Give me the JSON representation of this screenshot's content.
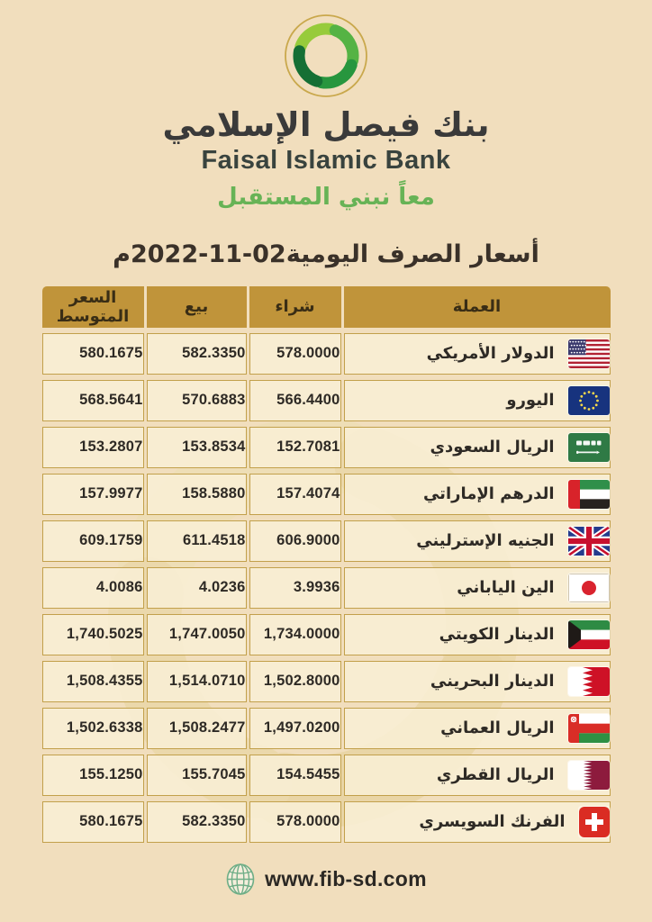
{
  "brand": {
    "logo_icon": "faisal-swirl-logo",
    "bank_name_ar": "بنك فيصل الإسلامي",
    "bank_name_en": "Faisal Islamic Bank",
    "tagline_ar": "معاً نبني المستقبل"
  },
  "title": "أسعار الصرف اليومية02-11-2022م",
  "table": {
    "columns": [
      {
        "key": "currency",
        "label": "العملة"
      },
      {
        "key": "buy",
        "label": "شراء"
      },
      {
        "key": "sell",
        "label": "بيع"
      },
      {
        "key": "avg",
        "label": "السعر المتوسط"
      }
    ],
    "rows": [
      {
        "currency": "الدولار الأمريكي",
        "flag": "us",
        "buy": "578.0000",
        "sell": "582.3350",
        "avg": "580.1675"
      },
      {
        "currency": "اليورو",
        "flag": "eu",
        "buy": "566.4400",
        "sell": "570.6883",
        "avg": "568.5641"
      },
      {
        "currency": "الريال السعودي",
        "flag": "sa",
        "buy": "152.7081",
        "sell": "153.8534",
        "avg": "153.2807"
      },
      {
        "currency": "الدرهم الإماراتي",
        "flag": "ae",
        "buy": "157.4074",
        "sell": "158.5880",
        "avg": "157.9977"
      },
      {
        "currency": "الجنيه الإسترليني",
        "flag": "gb",
        "buy": "606.9000",
        "sell": "611.4518",
        "avg": "609.1759"
      },
      {
        "currency": "الين الياباني",
        "flag": "jp",
        "buy": "3.9936",
        "sell": "4.0236",
        "avg": "4.0086"
      },
      {
        "currency": "الدينار الكويتي",
        "flag": "kw",
        "buy": "1,734.0000",
        "sell": "1,747.0050",
        "avg": "1,740.5025"
      },
      {
        "currency": "الدينار البحريني",
        "flag": "bh",
        "buy": "1,502.8000",
        "sell": "1,514.0710",
        "avg": "1,508.4355"
      },
      {
        "currency": "الريال العماني",
        "flag": "om",
        "buy": "1,497.0200",
        "sell": "1,508.2477",
        "avg": "1,502.6338"
      },
      {
        "currency": "الريال القطري",
        "flag": "qa",
        "buy": "154.5455",
        "sell": "155.7045",
        "avg": "155.1250"
      },
      {
        "currency": "الفرنك السويسري",
        "flag": "ch",
        "buy": "578.0000",
        "sell": "582.3350",
        "avg": "580.1675"
      }
    ]
  },
  "footer": {
    "globe_icon": "globe-icon",
    "website": "www.fib-sd.com"
  },
  "colors": {
    "page_background": "#F1DEBD",
    "header_gold": "#C0943A",
    "cell_cream": "#F9F0D6",
    "cell_border_gold": "#C2A04B",
    "text_dark": "#2E2A25",
    "tagline_green": "#67B356",
    "logo_green_light": "#97CB3B",
    "logo_green_dark": "#156F34",
    "watermark_gold": "#E5D193"
  }
}
